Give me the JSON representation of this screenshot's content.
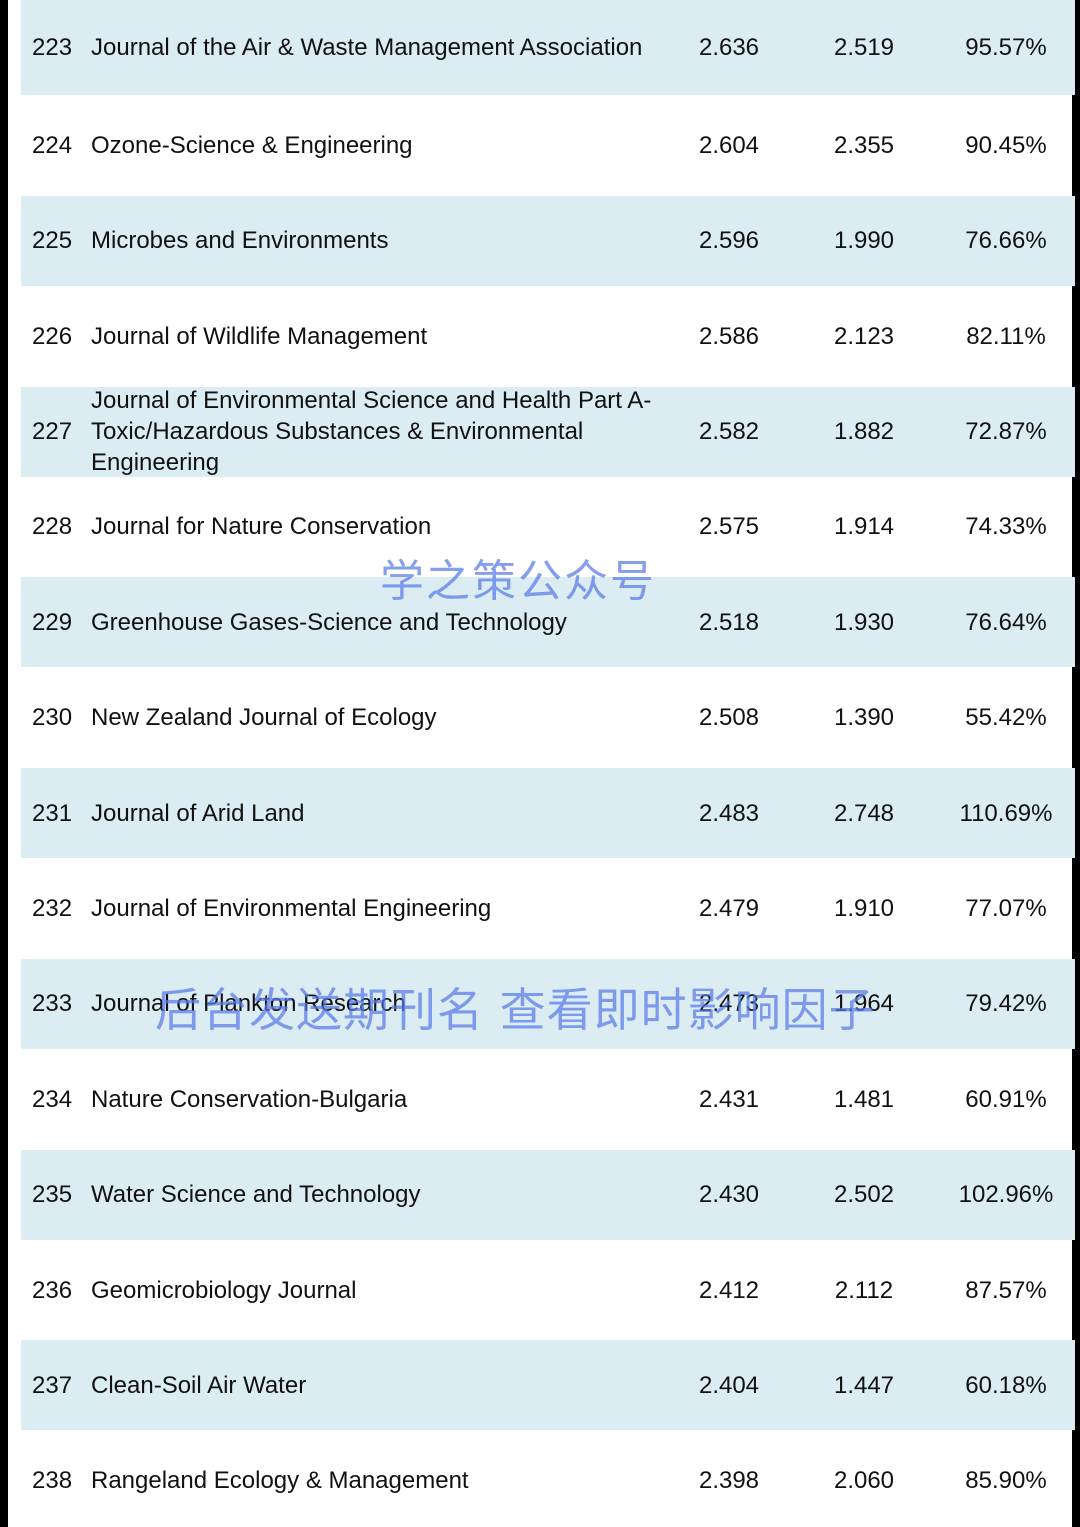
{
  "rows": [
    {
      "rank": "223",
      "journal": "Journal of the Air & Waste Management Association",
      "value1": "2.636",
      "value2": "2.519",
      "ratio": "95.57%",
      "shaded": true
    },
    {
      "rank": "224",
      "journal": "Ozone-Science & Engineering",
      "value1": "2.604",
      "value2": "2.355",
      "ratio": "90.45%",
      "shaded": false
    },
    {
      "rank": "225",
      "journal": "Microbes and Environments",
      "value1": "2.596",
      "value2": "1.990",
      "ratio": "76.66%",
      "shaded": true
    },
    {
      "rank": "226",
      "journal": "Journal of Wildlife Management",
      "value1": "2.586",
      "value2": "2.123",
      "ratio": "82.11%",
      "shaded": false
    },
    {
      "rank": "227",
      "journal": "Journal of Environmental Science and Health Part A-Toxic/Hazardous Substances & Environmental Engineering",
      "value1": "2.582",
      "value2": "1.882",
      "ratio": "72.87%",
      "shaded": true
    },
    {
      "rank": "228",
      "journal": "Journal for Nature Conservation",
      "value1": "2.575",
      "value2": "1.914",
      "ratio": "74.33%",
      "shaded": false
    },
    {
      "rank": "229",
      "journal": "Greenhouse Gases-Science and Technology",
      "value1": "2.518",
      "value2": "1.930",
      "ratio": "76.64%",
      "shaded": true
    },
    {
      "rank": "230",
      "journal": "New Zealand Journal of Ecology",
      "value1": "2.508",
      "value2": "1.390",
      "ratio": "55.42%",
      "shaded": false
    },
    {
      "rank": "231",
      "journal": "Journal of Arid Land",
      "value1": "2.483",
      "value2": "2.748",
      "ratio": "110.69%",
      "shaded": true
    },
    {
      "rank": "232",
      "journal": "Journal of Environmental Engineering",
      "value1": "2.479",
      "value2": "1.910",
      "ratio": "77.07%",
      "shaded": false
    },
    {
      "rank": "233",
      "journal": "Journal of Plankton Research",
      "value1": "2.473",
      "value2": "1.964",
      "ratio": "79.42%",
      "shaded": true
    },
    {
      "rank": "234",
      "journal": "Nature Conservation-Bulgaria",
      "value1": "2.431",
      "value2": "1.481",
      "ratio": "60.91%",
      "shaded": false
    },
    {
      "rank": "235",
      "journal": "Water Science and Technology",
      "value1": "2.430",
      "value2": "2.502",
      "ratio": "102.96%",
      "shaded": true
    },
    {
      "rank": "236",
      "journal": "Geomicrobiology Journal",
      "value1": "2.412",
      "value2": "2.112",
      "ratio": "87.57%",
      "shaded": false
    },
    {
      "rank": "237",
      "journal": "Clean-Soil Air Water",
      "value1": "2.404",
      "value2": "1.447",
      "ratio": "60.18%",
      "shaded": true
    },
    {
      "rank": "238",
      "journal": "Rangeland Ecology & Management",
      "value1": "2.398",
      "value2": "2.060",
      "ratio": "85.90%",
      "shaded": false
    }
  ],
  "watermarks": {
    "account": "学之策公众号",
    "instruction": "后台发送期刊名  查看即时影响因子"
  },
  "colors": {
    "shaded_row": "#dbecf3",
    "watermark": "#5878e8"
  }
}
